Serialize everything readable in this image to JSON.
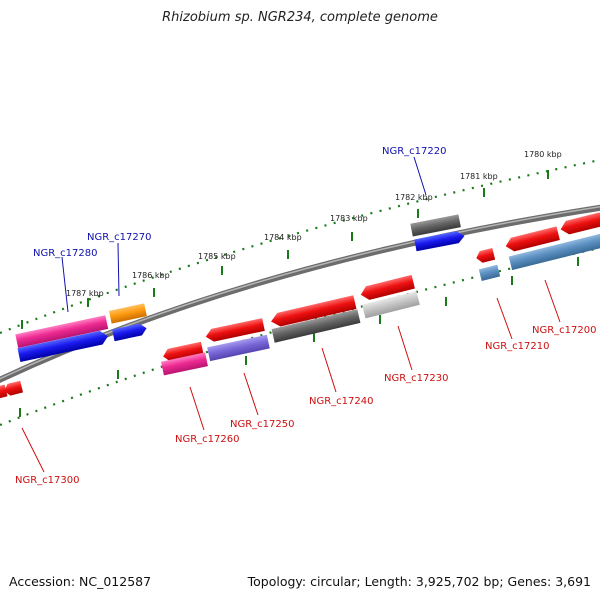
{
  "header": {
    "title": "Rhizobium sp. NGR234, complete genome"
  },
  "footer": {
    "accession": "Accession: NC_012587",
    "summary": "Topology: circular; Length: 3,925,702 bp; Genes: 3,691"
  },
  "scale_labels": [
    "1787 kbp",
    "1786 kbp",
    "1785 kbp",
    "1784 kbp",
    "1783 kbp",
    "1782 kbp",
    "1781 kbp",
    "1780 kbp"
  ],
  "gene_labels": {
    "NGR_c17280": "NGR_c17280",
    "NGR_c17270": "NGR_c17270",
    "NGR_c17220": "NGR_c17220",
    "NGR_c17210": "NGR_c17210",
    "NGR_c17200": "NGR_c17200",
    "NGR_c17230": "NGR_c17230",
    "NGR_c17240": "NGR_c17240",
    "NGR_c17250": "NGR_c17250",
    "NGR_c17260": "NGR_c17260",
    "NGR_c17300": "NGR_c17300"
  },
  "colors": {
    "label_top": "#1010b0",
    "label_bottom": "#cc1010",
    "tick": "#1a7a1a",
    "backbone": "#808080"
  }
}
